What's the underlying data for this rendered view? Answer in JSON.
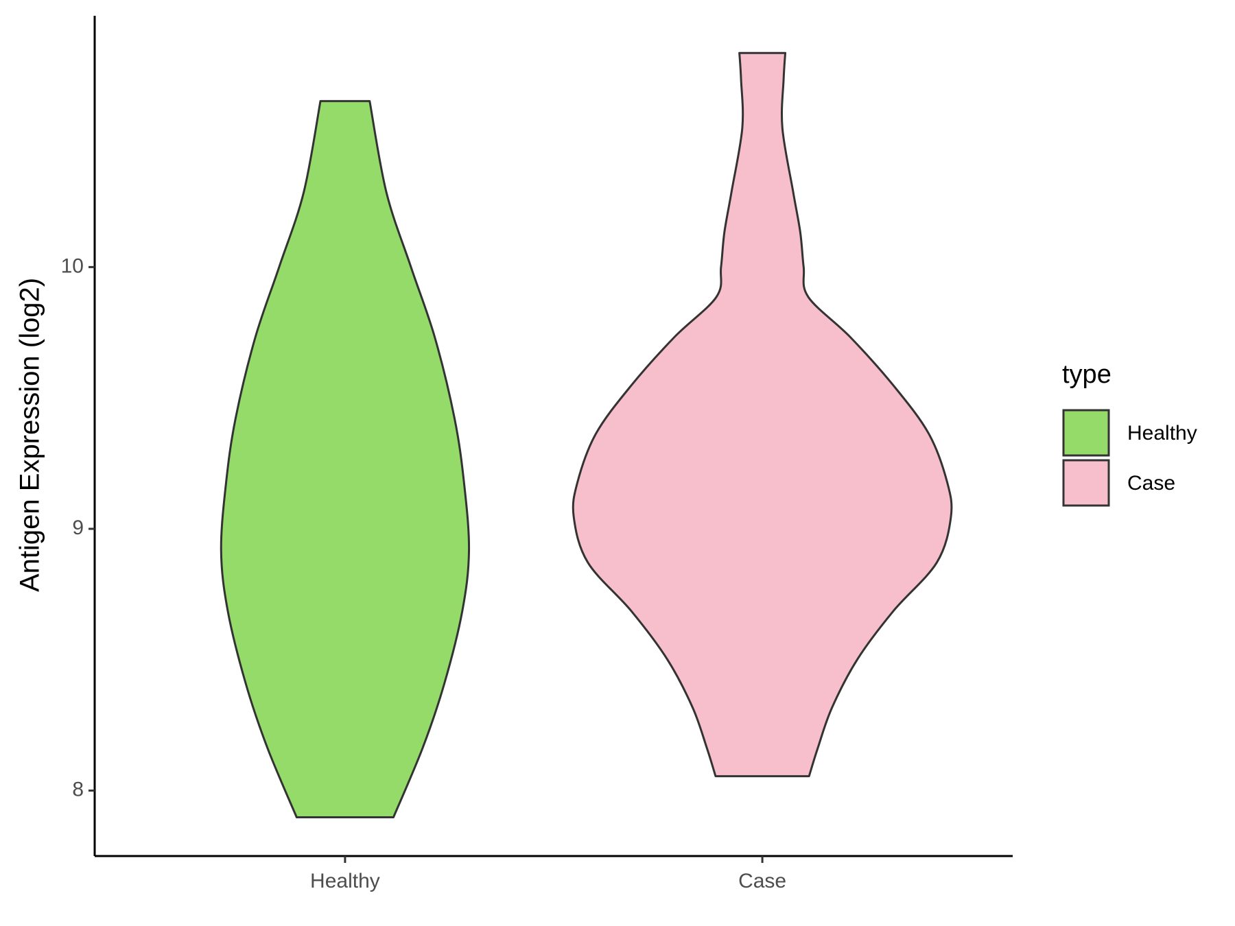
{
  "chart_data": {
    "type": "violin",
    "y_label": "Antigen Expression (log2)",
    "categories": [
      "Healthy",
      "Case"
    ],
    "ylim": [
      7.75,
      10.96
    ],
    "yticks": [
      8,
      9,
      10
    ],
    "legend_title": "type",
    "legend_position": "right",
    "series": [
      {
        "name": "Healthy",
        "color": "#94db6a",
        "y": [
          10.634,
          10.286,
          10.0,
          9.732,
          9.425,
          9.178,
          8.917,
          8.686,
          8.409,
          8.163,
          7.898
        ],
        "half_width": [
          0.059,
          0.099,
          0.158,
          0.215,
          0.262,
          0.285,
          0.297,
          0.281,
          0.238,
          0.186,
          0.116
        ]
      },
      {
        "name": "Case",
        "color": "#f7bfcb",
        "y": [
          10.818,
          10.717,
          10.532,
          10.286,
          10.132,
          10.0,
          9.886,
          9.732,
          9.548,
          9.363,
          9.178,
          9.046,
          8.871,
          8.686,
          8.502,
          8.317,
          8.163,
          8.055
        ],
        "half_width": [
          0.055,
          0.051,
          0.048,
          0.074,
          0.091,
          0.099,
          0.11,
          0.211,
          0.314,
          0.399,
          0.443,
          0.452,
          0.418,
          0.314,
          0.228,
          0.167,
          0.133,
          0.112
        ]
      }
    ]
  }
}
